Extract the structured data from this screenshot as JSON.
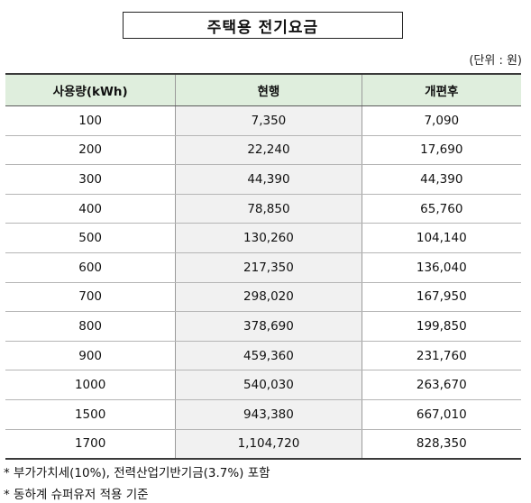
{
  "title": "주택용 전기요금",
  "unit_note": "(단위 : 원)",
  "table": {
    "headers": [
      "사용량(kWh)",
      "현행",
      "개편후"
    ],
    "rows": [
      [
        "100",
        "7,350",
        "7,090"
      ],
      [
        "200",
        "22,240",
        "17,690"
      ],
      [
        "300",
        "44,390",
        "44,390"
      ],
      [
        "400",
        "78,850",
        "65,760"
      ],
      [
        "500",
        "130,260",
        "104,140"
      ],
      [
        "600",
        "217,350",
        "136,040"
      ],
      [
        "700",
        "298,020",
        "167,950"
      ],
      [
        "800",
        "378,690",
        "199,850"
      ],
      [
        "900",
        "459,360",
        "231,760"
      ],
      [
        "1000",
        "540,030",
        "263,670"
      ],
      [
        "1500",
        "943,380",
        "667,010"
      ],
      [
        "1700",
        "1,104,720",
        "828,350"
      ]
    ]
  },
  "footnotes": [
    "* 부가가치세(10%), 전력산업기반기금(3.7%) 포함",
    "* 동하계 슈퍼유저 적용 기준"
  ],
  "colors": {
    "header_bg": "#dfeedd",
    "current_col_bg": "#f1f1f1"
  }
}
